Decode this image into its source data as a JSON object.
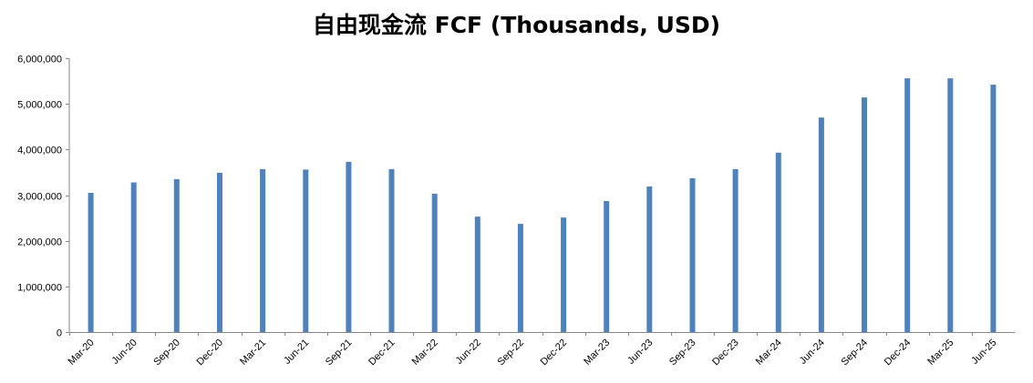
{
  "chart_data": {
    "type": "bar",
    "title": "自由现金流 FCF (Thousands, USD)",
    "xlabel": "",
    "ylabel": "",
    "categories": [
      "Mar-20",
      "Jun-20",
      "Sep-20",
      "Dec-20",
      "Mar-21",
      "Jun-21",
      "Sep-21",
      "Dec-21",
      "Mar-22",
      "Jun-22",
      "Sep-22",
      "Dec-22",
      "Mar-23",
      "Jun-23",
      "Sep-23",
      "Dec-23",
      "Mar-24",
      "Jun-24",
      "Sep-24",
      "Dec-24",
      "Mar-25",
      "Jun-25"
    ],
    "values": [
      3050000,
      3280000,
      3350000,
      3490000,
      3570000,
      3560000,
      3730000,
      3570000,
      3030000,
      2530000,
      2370000,
      2510000,
      2870000,
      3190000,
      3370000,
      3570000,
      3930000,
      4700000,
      5140000,
      5560000,
      5560000,
      5420000
    ],
    "ylim": [
      0,
      6000000
    ],
    "yticks": [
      0,
      1000000,
      2000000,
      3000000,
      4000000,
      5000000,
      6000000
    ],
    "ytick_labels": [
      "0",
      "1,000,000",
      "2,000,000",
      "3,000,000",
      "4,000,000",
      "5,000,000",
      "6,000,000"
    ],
    "grid": false,
    "legend": "none",
    "bar_color": "#4f81bd"
  }
}
